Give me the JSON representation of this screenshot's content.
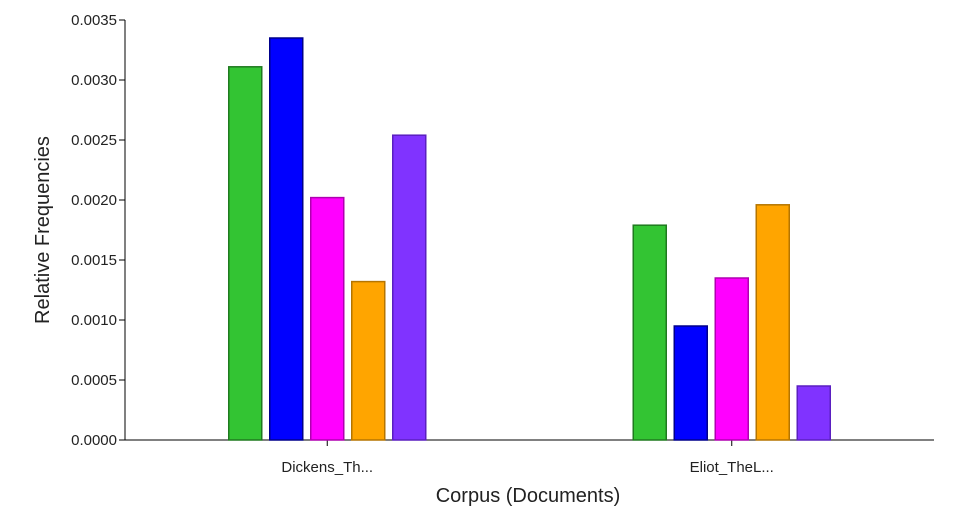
{
  "chart_data": {
    "type": "bar",
    "categories": [
      "Dickens_Th...",
      "Eliot_TheL..."
    ],
    "series": [
      {
        "color": "#33c433",
        "stroke": "#1f7a1f",
        "values": [
          0.00311,
          0.00179
        ]
      },
      {
        "color": "#0000ff",
        "stroke": "#00008b",
        "values": [
          0.00335,
          0.00095
        ]
      },
      {
        "color": "#ff00ff",
        "stroke": "#b000b0",
        "values": [
          0.00202,
          0.00135
        ]
      },
      {
        "color": "#ffa500",
        "stroke": "#b57500",
        "values": [
          0.00132,
          0.00196
        ]
      },
      {
        "color": "#8033ff",
        "stroke": "#5a1fc0",
        "values": [
          0.00254,
          0.00045
        ]
      }
    ],
    "xlabel": "Corpus (Documents)",
    "ylabel": "Relative Frequencies",
    "ylim": [
      0,
      0.0035
    ],
    "yticks": [
      "0.0000",
      "0.0005",
      "0.0010",
      "0.0015",
      "0.0020",
      "0.0025",
      "0.0030",
      "0.0035"
    ],
    "grid": false,
    "legend": "none"
  }
}
